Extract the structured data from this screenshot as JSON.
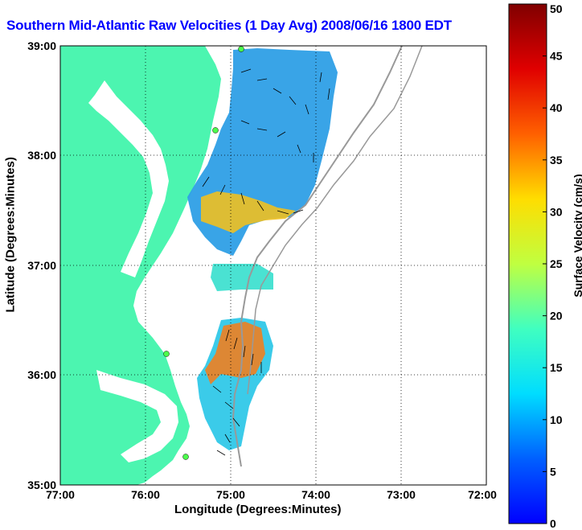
{
  "title": "Southern Mid-Atlantic Raw Velocities (1 Day Avg) 2008/06/16 1800 EDT",
  "xlabel": "Longitude (Degrees:Minutes)",
  "ylabel": "Latitude (Degrees:Minutes)",
  "colorbar": {
    "label": "Surface Velocity (cm/s)",
    "ticks": [
      "0",
      "5",
      "10",
      "15",
      "20",
      "25",
      "30",
      "35",
      "40",
      "45",
      "50"
    ],
    "range": [
      0,
      50
    ]
  },
  "map": {
    "x_ticks": [
      "77:00",
      "76:00",
      "75:00",
      "74:00",
      "73:00",
      "72:00"
    ],
    "y_ticks": [
      "39:00",
      "38:00",
      "37:00",
      "36:00",
      "35:00"
    ],
    "lon_range": [
      -77,
      -72
    ],
    "lat_range": [
      35,
      39
    ],
    "grid": "dotted",
    "land_color": "#4cf5b0",
    "coastline_color": "#999999"
  }
}
